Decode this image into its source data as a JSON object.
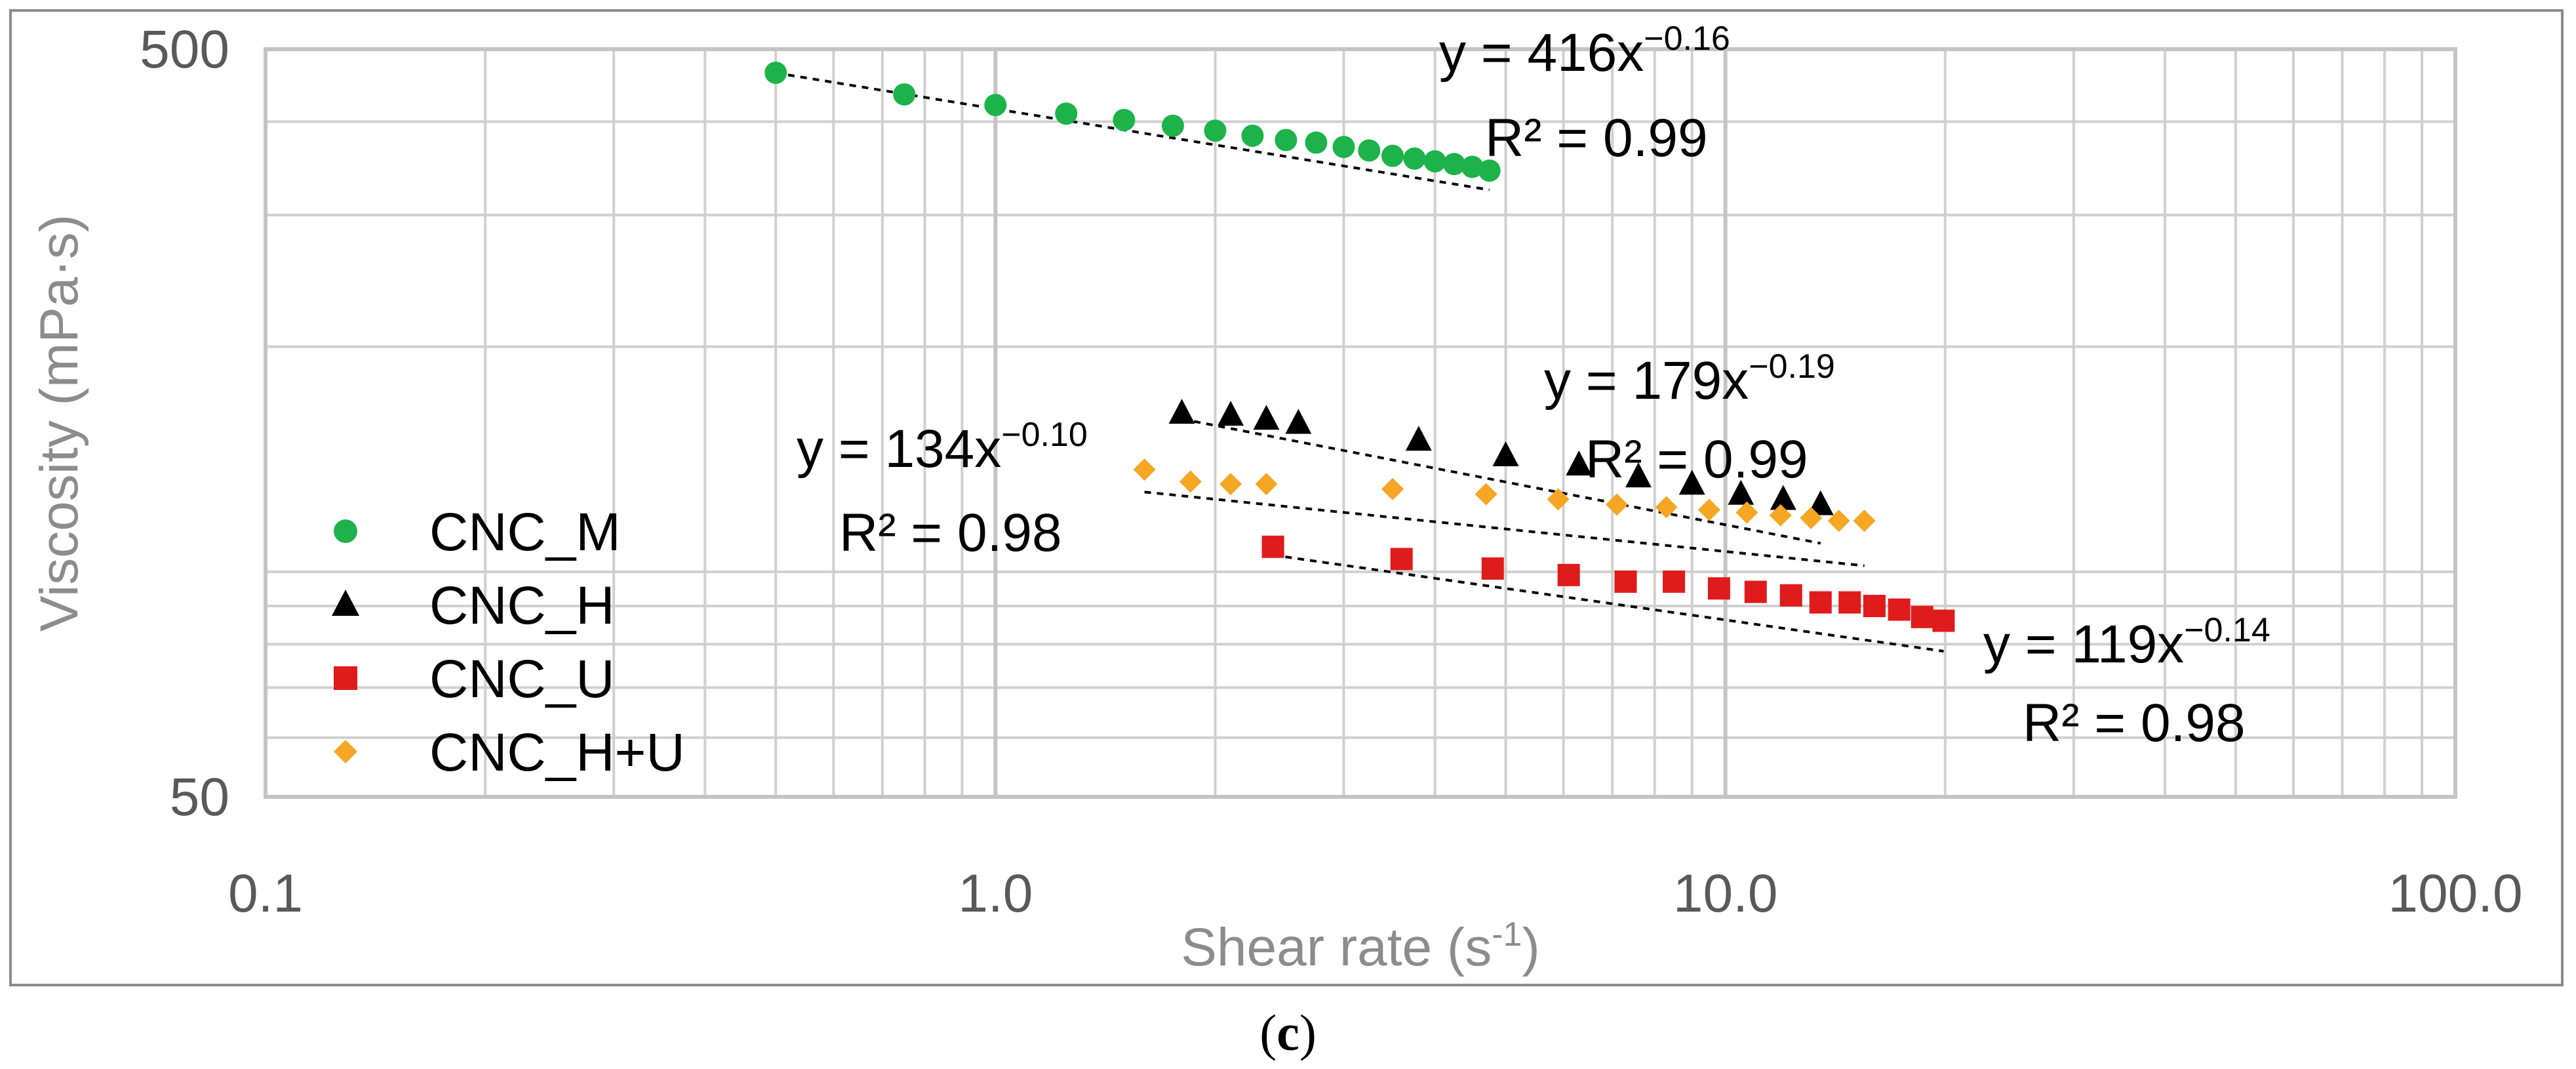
{
  "caption": {
    "open": "(",
    "letter": "c",
    "close": ")"
  },
  "chart_data": {
    "type": "scatter",
    "xscale": "log",
    "yscale": "log",
    "xlim": [
      0.1,
      100
    ],
    "ylim": [
      50,
      500
    ],
    "xlabel_text": "Shear rate (s",
    "xlabel_sup": "-1",
    "xlabel_close": ")",
    "ylabel": "Viscosity (mPa·s)",
    "x_ticks": [
      {
        "value": 0.1,
        "label": "0.1"
      },
      {
        "value": 1,
        "label": "1.0"
      },
      {
        "value": 10,
        "label": "10.0"
      },
      {
        "value": 100,
        "label": "100.0"
      }
    ],
    "y_ticks": [
      {
        "value": 50,
        "label": "50"
      },
      {
        "value": 500,
        "label": "500"
      }
    ],
    "grid": true,
    "legend_position": "left-bottom",
    "series": [
      {
        "name": "CNC_M",
        "marker": "circle",
        "color": "#1db34a",
        "x": [
          0.5,
          0.75,
          1.0,
          1.25,
          1.5,
          1.75,
          2.0,
          2.25,
          2.5,
          2.75,
          3.0,
          3.25,
          3.5,
          3.75,
          4.0,
          4.25,
          4.5,
          4.75
        ],
        "y": [
          465,
          435,
          421,
          410,
          402,
          395,
          389,
          383,
          378,
          375,
          370,
          366,
          360,
          357,
          354,
          351,
          348,
          344
        ],
        "fit": {
          "a": 416,
          "b": -0.16,
          "x_range": [
            0.5,
            4.75
          ],
          "eq_prefix": "y = 416x",
          "eq_exp": "−0.16",
          "r2": "R² = 0.99"
        }
      },
      {
        "name": "CNC_H",
        "marker": "triangle",
        "color": "#000000",
        "x": [
          1.8,
          2.1,
          2.35,
          2.6,
          3.8,
          5.0,
          6.3,
          7.6,
          9.0,
          10.5,
          12.0,
          13.5
        ],
        "y": [
          163,
          162,
          160,
          158,
          150,
          143,
          139,
          134,
          131,
          127,
          125,
          123
        ],
        "fit": {
          "a": 179,
          "b": -0.19,
          "x_range": [
            1.8,
            13.5
          ],
          "eq_prefix": "y = 179x",
          "eq_exp": "−0.19",
          "r2": "R² = 0.99"
        }
      },
      {
        "name": "CNC_U",
        "marker": "square",
        "color": "#e01b1b",
        "x": [
          2.4,
          3.6,
          4.8,
          6.1,
          7.3,
          8.5,
          9.8,
          11.0,
          12.3,
          13.5,
          14.8,
          16.0,
          17.3,
          18.6,
          19.9
        ],
        "y": [
          108,
          104,
          101,
          99,
          97,
          97,
          95,
          94,
          93,
          91,
          91,
          90,
          89,
          87,
          86
        ],
        "fit": {
          "a": 119,
          "b": -0.14,
          "x_range": [
            2.4,
            19.9
          ],
          "eq_prefix": "y = 119x",
          "eq_exp": "−0.14",
          "r2": "R² = 0.98"
        }
      },
      {
        "name": "CNC_H+U",
        "marker": "diamond",
        "color": "#f5a623",
        "x": [
          1.6,
          1.85,
          2.1,
          2.35,
          3.5,
          4.7,
          5.9,
          7.1,
          8.3,
          9.5,
          10.7,
          11.9,
          13.1,
          14.3,
          15.5
        ],
        "y": [
          137,
          132,
          131,
          131,
          129,
          127,
          125,
          123,
          122,
          121,
          120,
          119,
          118,
          117,
          117
        ],
        "fit": {
          "a": 134,
          "b": -0.1,
          "x_range": [
            1.6,
            15.5
          ],
          "eq_prefix": "y = 134x",
          "eq_exp": "−0.10",
          "r2": "R² = 0.98"
        }
      }
    ]
  }
}
